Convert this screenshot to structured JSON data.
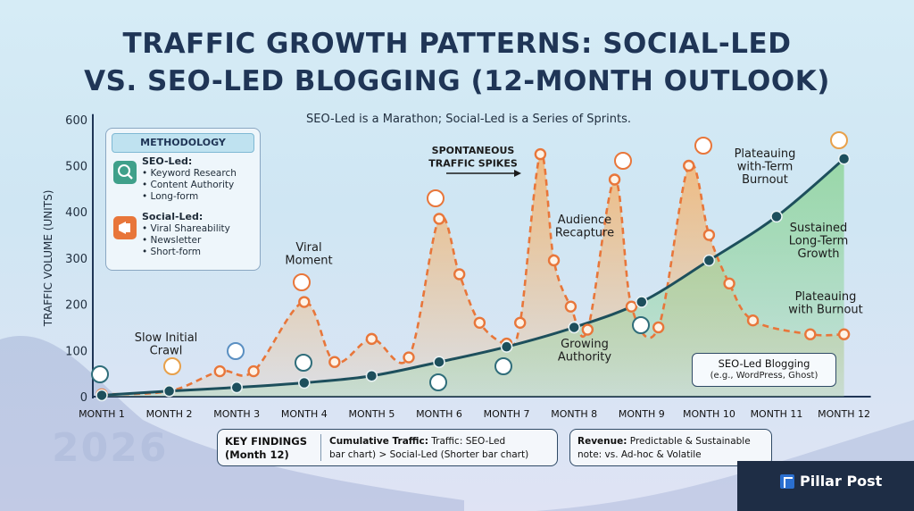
{
  "title_line1": "TRAFFIC GROWTH PATTERNS: SOCIAL-LED",
  "title_line2": "VS. SEO-LED BLOGGING (12-MONTH OUTLOOK)",
  "subtitle": "SEO-Led is a Marathon; Social-Led is a Series of Sprints.",
  "chart_data": {
    "type": "line",
    "ylabel": "TRAFFIC VOLUME (UNITS)",
    "ylim": [
      0,
      600
    ],
    "yticks": [
      0,
      100,
      200,
      300,
      400,
      500,
      600
    ],
    "categories": [
      "MONTH 1",
      "MONTH 2",
      "MONTH 3",
      "MONTH 4",
      "MONTH 5",
      "MONTH 6",
      "MONTH 7",
      "MONTH 8",
      "MONTH 9",
      "MONTH 10",
      "MONTH 11",
      "MONTH 12"
    ],
    "series": [
      {
        "key": "social",
        "color": "#e8763a",
        "points": [
          [
            1,
            5
          ],
          [
            2,
            12
          ],
          [
            2.75,
            55
          ],
          [
            3.25,
            55
          ],
          [
            4,
            205
          ],
          [
            4.45,
            75
          ],
          [
            5,
            125
          ],
          [
            5.55,
            85
          ],
          [
            6,
            385
          ],
          [
            6.3,
            265
          ],
          [
            6.6,
            160
          ],
          [
            7,
            115
          ],
          [
            7.2,
            160
          ],
          [
            7.5,
            525
          ],
          [
            7.7,
            295
          ],
          [
            7.95,
            195
          ],
          [
            8.2,
            145
          ],
          [
            8.6,
            470
          ],
          [
            8.85,
            195
          ],
          [
            9.25,
            150
          ],
          [
            9.7,
            500
          ],
          [
            10,
            350
          ],
          [
            10.3,
            245
          ],
          [
            10.65,
            165
          ],
          [
            11.5,
            135
          ],
          [
            12,
            135
          ]
        ]
      },
      {
        "key": "seo",
        "color": "#1d4f5c",
        "points": [
          [
            1,
            3
          ],
          [
            2,
            12
          ],
          [
            3,
            20
          ],
          [
            4,
            30
          ],
          [
            5,
            45
          ],
          [
            6,
            75
          ],
          [
            7,
            108
          ],
          [
            8,
            150
          ],
          [
            9,
            205
          ],
          [
            10,
            295
          ],
          [
            11,
            390
          ],
          [
            12,
            515
          ]
        ]
      }
    ],
    "annotations": [
      {
        "text": [
          "Slow Initial",
          "Crawl"
        ]
      },
      {
        "text": [
          "Viral",
          "Moment"
        ]
      },
      {
        "text": [
          "SPONTANEOUS",
          "TRAFFIC SPIKES"
        ]
      },
      {
        "text": [
          "Audience",
          "Recapture"
        ]
      },
      {
        "text": [
          "Growing",
          "Authority"
        ]
      },
      {
        "text": [
          "Plateauing",
          "with-Term",
          "Burnout"
        ]
      },
      {
        "text": [
          "Sustained",
          "Long-Term",
          "Growth"
        ]
      },
      {
        "text": [
          "Plateauing",
          "with Burnout"
        ]
      }
    ]
  },
  "methodology": {
    "heading": "METHODOLOGY",
    "seo": {
      "label": "SEO-Led:",
      "items": [
        "• Keyword Research",
        "• Content Authority",
        "• Long-form"
      ]
    },
    "social": {
      "label": "Social-Led:",
      "items": [
        "• Viral Shareability",
        "• Newsletter",
        "• Short-form"
      ]
    }
  },
  "key_findings": {
    "label_line1": "KEY FINDINGS",
    "label_line2": "(Month 12)",
    "text_bold": "Cumulative Traffic:",
    "text_line1": " Traffic: SEO-Led",
    "text_line2": "bar chart) > Social-Led (Shorter bar chart)"
  },
  "revenue": {
    "text_bold": "Revenue:",
    "text_line1": " Predictable & Sustainable",
    "text_line2": "note: vs. Ad-hoc & Volatile"
  },
  "seo_box": {
    "title": "SEO-Led Blogging",
    "examples": "(e.g., WordPress, Ghost)"
  },
  "brand": "Pillar Post",
  "year": "2026",
  "colors": {
    "title": "#1f3556",
    "social": "#e8763a",
    "seo": "#1d4f5c",
    "seo_fill": "#8fd49a",
    "social_fill": "#f6b26b"
  }
}
